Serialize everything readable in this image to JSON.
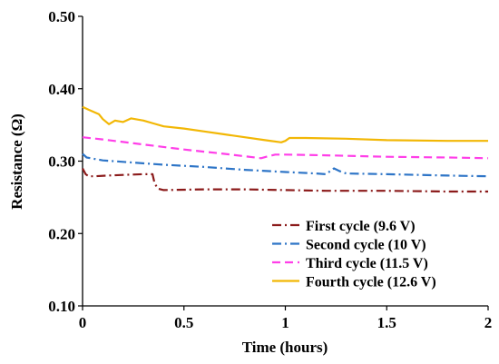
{
  "chart_data": {
    "type": "line",
    "xlabel": "Time (hours)",
    "ylabel": "Resistance (Ω)",
    "xlim": [
      0,
      2
    ],
    "ylim": [
      0.1,
      0.5
    ],
    "xticks": [
      0,
      0.5,
      1,
      1.5,
      2
    ],
    "xtick_labels": [
      "0",
      "0.5",
      "1",
      "1.5",
      "2"
    ],
    "yticks": [
      0.1,
      0.2,
      0.3,
      0.4,
      0.5
    ],
    "ytick_labels": [
      "0.10",
      "0.20",
      "0.30",
      "0.40",
      "0.50"
    ],
    "grid": false,
    "legend_position": "bottom-right",
    "series": [
      {
        "name": "First cycle (9.6 V)",
        "color": "#8B1A1A",
        "dash": "dash-dot",
        "points": [
          [
            0,
            0.29
          ],
          [
            0.015,
            0.282
          ],
          [
            0.03,
            0.279
          ],
          [
            0.06,
            0.279
          ],
          [
            0.12,
            0.28
          ],
          [
            0.2,
            0.281
          ],
          [
            0.3,
            0.282
          ],
          [
            0.345,
            0.282
          ],
          [
            0.355,
            0.27
          ],
          [
            0.37,
            0.262
          ],
          [
            0.4,
            0.26
          ],
          [
            0.6,
            0.261
          ],
          [
            0.8,
            0.261
          ],
          [
            1.0,
            0.26
          ],
          [
            1.2,
            0.259
          ],
          [
            1.5,
            0.259
          ],
          [
            1.8,
            0.258
          ],
          [
            2.0,
            0.258
          ]
        ]
      },
      {
        "name": "Second cycle (10 V)",
        "color": "#2E75C7",
        "dash": "dash-dot",
        "points": [
          [
            0,
            0.31
          ],
          [
            0.02,
            0.305
          ],
          [
            0.1,
            0.301
          ],
          [
            0.2,
            0.299
          ],
          [
            0.4,
            0.295
          ],
          [
            0.6,
            0.292
          ],
          [
            0.8,
            0.288
          ],
          [
            1.0,
            0.285
          ],
          [
            1.15,
            0.283
          ],
          [
            1.2,
            0.282
          ],
          [
            1.24,
            0.29
          ],
          [
            1.27,
            0.286
          ],
          [
            1.3,
            0.283
          ],
          [
            1.5,
            0.282
          ],
          [
            1.8,
            0.28
          ],
          [
            2.0,
            0.279
          ]
        ]
      },
      {
        "name": "Third cycle (11.5 V)",
        "color": "#FF3FE8",
        "dash": "dash",
        "points": [
          [
            0,
            0.333
          ],
          [
            0.1,
            0.33
          ],
          [
            0.3,
            0.323
          ],
          [
            0.5,
            0.316
          ],
          [
            0.7,
            0.31
          ],
          [
            0.88,
            0.304
          ],
          [
            0.92,
            0.307
          ],
          [
            0.95,
            0.309
          ],
          [
            1.0,
            0.309
          ],
          [
            1.2,
            0.308
          ],
          [
            1.5,
            0.306
          ],
          [
            1.8,
            0.305
          ],
          [
            2.0,
            0.304
          ]
        ]
      },
      {
        "name": "Fourth cycle (12.6 V)",
        "color": "#F2B705",
        "dash": "solid",
        "points": [
          [
            0,
            0.375
          ],
          [
            0.03,
            0.371
          ],
          [
            0.08,
            0.365
          ],
          [
            0.1,
            0.358
          ],
          [
            0.13,
            0.351
          ],
          [
            0.16,
            0.356
          ],
          [
            0.2,
            0.354
          ],
          [
            0.24,
            0.359
          ],
          [
            0.3,
            0.356
          ],
          [
            0.35,
            0.352
          ],
          [
            0.4,
            0.348
          ],
          [
            0.5,
            0.345
          ],
          [
            0.6,
            0.341
          ],
          [
            0.7,
            0.337
          ],
          [
            0.8,
            0.333
          ],
          [
            0.9,
            0.329
          ],
          [
            0.98,
            0.326
          ],
          [
            1.0,
            0.328
          ],
          [
            1.02,
            0.332
          ],
          [
            1.1,
            0.332
          ],
          [
            1.3,
            0.331
          ],
          [
            1.5,
            0.329
          ],
          [
            1.8,
            0.328
          ],
          [
            2.0,
            0.328
          ]
        ]
      }
    ]
  }
}
